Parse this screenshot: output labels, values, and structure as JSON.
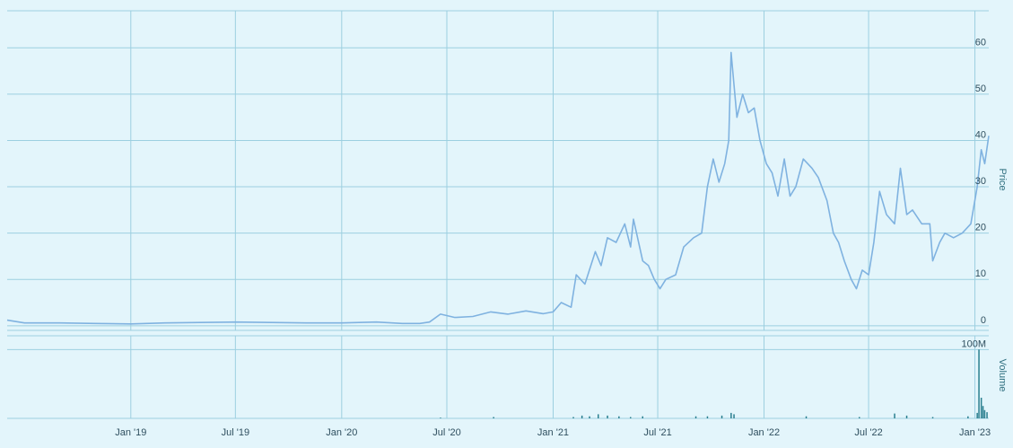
{
  "colors": {
    "background": "#e3f5fb",
    "grid": "#9ccfe0",
    "price_line": "#7fb2e0",
    "volume_bar": "#2a7f8f",
    "label": "#2f4f5f"
  },
  "chart_data": [
    {
      "type": "line",
      "panel": "price",
      "ylabel": "Price",
      "ylim": [
        -1,
        68
      ],
      "y_ticks": [
        "0",
        "10",
        "20",
        "30",
        "40",
        "50",
        "60"
      ],
      "xlim": [
        "2018-06-01",
        "2023-01-25"
      ],
      "grid": true,
      "series": [
        {
          "x": [
            "2018-06-01",
            "2018-07-01",
            "2018-09-01",
            "2018-11-01",
            "2019-01-01",
            "2019-03-01",
            "2019-05-01",
            "2019-07-01",
            "2019-09-01",
            "2019-11-01",
            "2020-01-01",
            "2020-03-01",
            "2020-04-15",
            "2020-05-15",
            "2020-06-01",
            "2020-06-20",
            "2020-07-15",
            "2020-08-15",
            "2020-09-15",
            "2020-10-15",
            "2020-11-15",
            "2020-12-15",
            "2021-01-01",
            "2021-01-15",
            "2021-02-01",
            "2021-02-10",
            "2021-02-25",
            "2021-03-15",
            "2021-03-25",
            "2021-04-05",
            "2021-04-20",
            "2021-05-05",
            "2021-05-15",
            "2021-05-20",
            "2021-06-05",
            "2021-06-15",
            "2021-06-25",
            "2021-07-05",
            "2021-07-15",
            "2021-08-01",
            "2021-08-15",
            "2021-09-01",
            "2021-09-15",
            "2021-09-25",
            "2021-10-05",
            "2021-10-15",
            "2021-10-25",
            "2021-11-01",
            "2021-11-05",
            "2021-11-15",
            "2021-11-25",
            "2021-12-05",
            "2021-12-15",
            "2021-12-25",
            "2022-01-05",
            "2022-01-15",
            "2022-01-25",
            "2022-02-05",
            "2022-02-15",
            "2022-02-25",
            "2022-03-10",
            "2022-03-25",
            "2022-04-05",
            "2022-04-20",
            "2022-05-01",
            "2022-05-10",
            "2022-05-20",
            "2022-06-01",
            "2022-06-10",
            "2022-06-20",
            "2022-07-01",
            "2022-07-10",
            "2022-07-20",
            "2022-08-01",
            "2022-08-15",
            "2022-08-25",
            "2022-09-05",
            "2022-09-15",
            "2022-10-01",
            "2022-10-15",
            "2022-10-20",
            "2022-11-01",
            "2022-11-10",
            "2022-11-25",
            "2022-12-10",
            "2022-12-25",
            "2023-01-05",
            "2023-01-12",
            "2023-01-18",
            "2023-01-25"
          ],
          "y": [
            1.2,
            0.6,
            0.6,
            0.5,
            0.4,
            0.6,
            0.7,
            0.8,
            0.7,
            0.6,
            0.6,
            0.8,
            0.5,
            0.5,
            0.8,
            2.5,
            1.8,
            2.0,
            3.0,
            2.5,
            3.2,
            2.6,
            3.0,
            5.0,
            4.0,
            11.0,
            9.0,
            16.0,
            13.0,
            19.0,
            18.0,
            22.0,
            17.0,
            23.0,
            14.0,
            13.0,
            10.0,
            8.0,
            10.0,
            11.0,
            17.0,
            19.0,
            20.0,
            30.0,
            36.0,
            31.0,
            35.0,
            40.0,
            59.0,
            45.0,
            50.0,
            46.0,
            47.0,
            40.0,
            35.0,
            33.0,
            28.0,
            36.0,
            28.0,
            30.0,
            36.0,
            34.0,
            32.0,
            27.0,
            20.0,
            18.0,
            14.0,
            10.0,
            8.0,
            12.0,
            11.0,
            18.0,
            29.0,
            24.0,
            22.0,
            34.0,
            24.0,
            25.0,
            22.0,
            22.0,
            14.0,
            18.0,
            20.0,
            19.0,
            20.0,
            22.0,
            30.0,
            38.0,
            35.0,
            41.0
          ]
        }
      ]
    },
    {
      "type": "bar",
      "panel": "volume",
      "ylabel": "Volume",
      "ylim": [
        0,
        120
      ],
      "y_ticks": [
        "100M"
      ],
      "xlim": [
        "2018-06-01",
        "2023-01-25"
      ],
      "x_ticks": [
        {
          "date": "2019-01-01",
          "label": "Jan '19"
        },
        {
          "date": "2019-07-01",
          "label": "Jul '19"
        },
        {
          "date": "2020-01-01",
          "label": "Jan '20"
        },
        {
          "date": "2020-07-01",
          "label": "Jul '20"
        },
        {
          "date": "2021-01-01",
          "label": "Jan '21"
        },
        {
          "date": "2021-07-01",
          "label": "Jul '21"
        },
        {
          "date": "2022-01-01",
          "label": "Jan '22"
        },
        {
          "date": "2022-07-01",
          "label": "Jul '22"
        },
        {
          "date": "2023-01-01",
          "label": "Jan '23"
        }
      ],
      "series": [
        {
          "x": [
            "2020-06-20",
            "2020-09-20",
            "2021-02-05",
            "2021-02-20",
            "2021-03-05",
            "2021-03-20",
            "2021-04-05",
            "2021-04-25",
            "2021-05-15",
            "2021-06-05",
            "2021-09-05",
            "2021-09-25",
            "2021-10-20",
            "2021-11-05",
            "2021-11-10",
            "2022-03-15",
            "2022-06-15",
            "2022-08-15",
            "2022-09-05",
            "2022-10-20",
            "2022-12-20",
            "2023-01-05",
            "2023-01-08",
            "2023-01-12",
            "2023-01-15",
            "2023-01-18",
            "2023-01-22"
          ],
          "y": [
            1,
            2,
            2,
            4,
            3,
            6,
            4,
            3,
            2,
            3,
            3,
            3,
            4,
            8,
            6,
            3,
            2,
            7,
            4,
            2,
            3,
            8,
            100,
            30,
            18,
            12,
            9
          ]
        }
      ]
    }
  ]
}
